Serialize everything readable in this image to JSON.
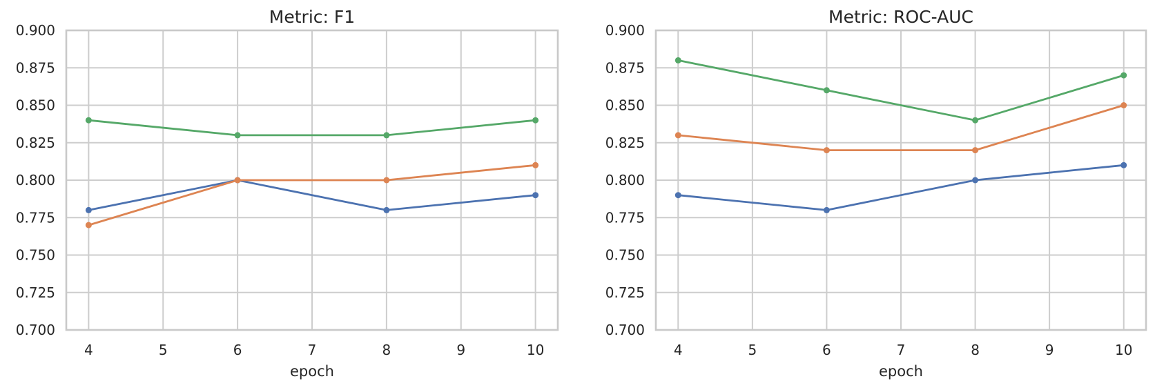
{
  "figure": {
    "background": "#ffffff",
    "grid_color": "#cdcdcd",
    "spine_color": "#c9c9c9",
    "text_color": "#262626",
    "palette": {
      "blue": "#4C72B0",
      "orange": "#DD8452",
      "green": "#55A868"
    }
  },
  "chart_data": [
    {
      "type": "line",
      "title": "Metric: F1",
      "xlabel": "epoch",
      "ylabel": "",
      "x": [
        4,
        6,
        8,
        10
      ],
      "xticks": [
        4,
        5,
        6,
        7,
        8,
        9,
        10
      ],
      "yticks": [
        0.7,
        0.725,
        0.75,
        0.775,
        0.8,
        0.825,
        0.85,
        0.875,
        0.9
      ],
      "xlim": [
        3.7,
        10.3
      ],
      "ylim": [
        0.7,
        0.9
      ],
      "grid": true,
      "legend_position": "none",
      "marker": "circle",
      "series": [
        {
          "name": "series-blue",
          "color": "#4C72B0",
          "values": [
            0.78,
            0.8,
            0.78,
            0.79
          ]
        },
        {
          "name": "series-orange",
          "color": "#DD8452",
          "values": [
            0.77,
            0.8,
            0.8,
            0.81
          ]
        },
        {
          "name": "series-green",
          "color": "#55A868",
          "values": [
            0.84,
            0.83,
            0.83,
            0.84
          ]
        }
      ]
    },
    {
      "type": "line",
      "title": "Metric: ROC-AUC",
      "xlabel": "epoch",
      "ylabel": "",
      "x": [
        4,
        6,
        8,
        10
      ],
      "xticks": [
        4,
        5,
        6,
        7,
        8,
        9,
        10
      ],
      "yticks": [
        0.7,
        0.725,
        0.75,
        0.775,
        0.8,
        0.825,
        0.85,
        0.875,
        0.9
      ],
      "xlim": [
        3.7,
        10.3
      ],
      "ylim": [
        0.7,
        0.9
      ],
      "grid": true,
      "legend_position": "none",
      "marker": "circle",
      "series": [
        {
          "name": "series-blue",
          "color": "#4C72B0",
          "values": [
            0.79,
            0.78,
            0.8,
            0.81
          ]
        },
        {
          "name": "series-orange",
          "color": "#DD8452",
          "values": [
            0.83,
            0.82,
            0.82,
            0.85
          ]
        },
        {
          "name": "series-green",
          "color": "#55A868",
          "values": [
            0.88,
            0.86,
            0.84,
            0.87
          ]
        }
      ]
    }
  ]
}
